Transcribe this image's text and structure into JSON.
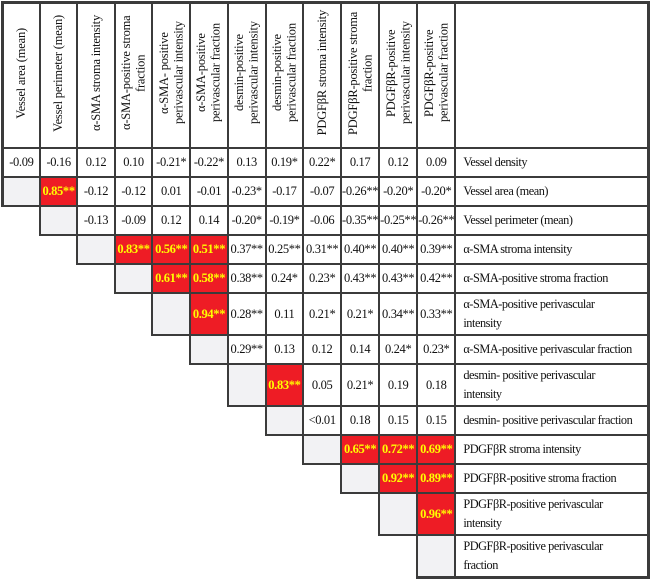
{
  "figure": {
    "kind": "correlation-matrix-table",
    "colors": {
      "highlight_bg": "#EE1C25",
      "highlight_text": "#FFFF00",
      "diagonal_bg": "#F2F2F4",
      "border": "#3B3B3B",
      "text": "#111111",
      "background": "#FFFFFF"
    }
  },
  "chart_data": {
    "type": "table",
    "columns": [
      "Vessel area (mean)",
      "Vessel perimeter (mean)",
      "α-SMA stroma intensity",
      "α-SMA-positive stroma fraction",
      "α-SMA- positive perivascular intensity",
      "α-SMA-positive perivascular fraction",
      "desmin-positive perivascular intensity",
      "desmin-positive perivascular fraction",
      "PDGFβR stroma intensity",
      "PDGFβR-positive stroma fraction",
      "PDGFβR-positive perivascular intensity",
      "PDGFβR-positive perivascular fraction"
    ],
    "rows": [
      {
        "label": "Vessel density",
        "tall": false,
        "cells": [
          {
            "v": "-0.09"
          },
          {
            "v": "-0.16"
          },
          {
            "v": "0.12"
          },
          {
            "v": "0.10"
          },
          {
            "v": "-0.21*"
          },
          {
            "v": "-0.22*"
          },
          {
            "v": "0.13"
          },
          {
            "v": "0.19*"
          },
          {
            "v": "0.22*"
          },
          {
            "v": "0.17"
          },
          {
            "v": "0.12"
          },
          {
            "v": "0.09"
          }
        ]
      },
      {
        "label": "Vessel area (mean)",
        "tall": false,
        "cells": [
          {
            "diag": true
          },
          {
            "v": "0.85**",
            "hl": true
          },
          {
            "v": "-0.12"
          },
          {
            "v": "-0.12"
          },
          {
            "v": "0.01"
          },
          {
            "v": "-0.01"
          },
          {
            "v": "-0.23*"
          },
          {
            "v": "-0.17"
          },
          {
            "v": "-0.07"
          },
          {
            "v": "-0.26**"
          },
          {
            "v": "-0.20*"
          },
          {
            "v": "-0.20*"
          }
        ]
      },
      {
        "label": "Vessel perimeter (mean)",
        "tall": false,
        "cells": [
          null,
          {
            "diag": true
          },
          {
            "v": "-0.13"
          },
          {
            "v": "-0.09"
          },
          {
            "v": "0.12"
          },
          {
            "v": "0.14"
          },
          {
            "v": "-0.20*"
          },
          {
            "v": "-0.19*"
          },
          {
            "v": "-0.06"
          },
          {
            "v": "-0.35**"
          },
          {
            "v": "-0.25**"
          },
          {
            "v": "-0.26**"
          }
        ]
      },
      {
        "label": "α-SMA stroma intensity",
        "tall": false,
        "cells": [
          null,
          null,
          {
            "diag": true
          },
          {
            "v": "0.83**",
            "hl": true
          },
          {
            "v": "0.56**",
            "hl": true
          },
          {
            "v": "0.51**",
            "hl": true
          },
          {
            "v": "0.37**"
          },
          {
            "v": "0.25**"
          },
          {
            "v": "0.31**"
          },
          {
            "v": "0.40**"
          },
          {
            "v": "0.40**"
          },
          {
            "v": "0.39**"
          }
        ]
      },
      {
        "label": "α-SMA-positive stroma fraction",
        "tall": false,
        "cells": [
          null,
          null,
          null,
          {
            "diag": true
          },
          {
            "v": "0.61**",
            "hl": true
          },
          {
            "v": "0.58**",
            "hl": true
          },
          {
            "v": "0.38**"
          },
          {
            "v": "0.24*"
          },
          {
            "v": "0.23*"
          },
          {
            "v": "0.43**"
          },
          {
            "v": "0.43**"
          },
          {
            "v": "0.42**"
          }
        ]
      },
      {
        "label": "α-SMA-positive perivascular intensity",
        "tall": true,
        "cells": [
          null,
          null,
          null,
          null,
          {
            "diag": true
          },
          {
            "v": "0.94**",
            "hl": true
          },
          {
            "v": "0.28**"
          },
          {
            "v": "0.11"
          },
          {
            "v": "0.21*"
          },
          {
            "v": "0.21*"
          },
          {
            "v": "0.34**"
          },
          {
            "v": "0.33**"
          }
        ]
      },
      {
        "label": "α-SMA-positive perivascular fraction",
        "tall": false,
        "cells": [
          null,
          null,
          null,
          null,
          null,
          {
            "diag": true
          },
          {
            "v": "0.29**"
          },
          {
            "v": "0.13"
          },
          {
            "v": "0.12"
          },
          {
            "v": "0.14"
          },
          {
            "v": "0.24*"
          },
          {
            "v": "0.23*"
          }
        ]
      },
      {
        "label": "desmin- positive perivascular intensity",
        "tall": true,
        "cells": [
          null,
          null,
          null,
          null,
          null,
          null,
          {
            "diag": true
          },
          {
            "v": "0.83**",
            "hl": true
          },
          {
            "v": "0.05"
          },
          {
            "v": "0.21*"
          },
          {
            "v": "0.19"
          },
          {
            "v": "0.18"
          }
        ]
      },
      {
        "label": "desmin- positive perivascular fraction",
        "tall": false,
        "cells": [
          null,
          null,
          null,
          null,
          null,
          null,
          null,
          {
            "diag": true
          },
          {
            "v": "<0.01"
          },
          {
            "v": "0.18"
          },
          {
            "v": "0.15"
          },
          {
            "v": "0.15"
          }
        ]
      },
      {
        "label": "PDGFβR stroma intensity",
        "tall": false,
        "cells": [
          null,
          null,
          null,
          null,
          null,
          null,
          null,
          null,
          {
            "diag": true
          },
          {
            "v": "0.65**",
            "hl": true
          },
          {
            "v": "0.72**",
            "hl": true
          },
          {
            "v": "0.69**",
            "hl": true
          }
        ]
      },
      {
        "label": "PDGFβR-positive stroma fraction",
        "tall": false,
        "cells": [
          null,
          null,
          null,
          null,
          null,
          null,
          null,
          null,
          null,
          {
            "diag": true
          },
          {
            "v": "0.92**",
            "hl": true
          },
          {
            "v": "0.89**",
            "hl": true
          }
        ]
      },
      {
        "label": "PDGFβR-positive perivascular intensity",
        "tall": true,
        "cells": [
          null,
          null,
          null,
          null,
          null,
          null,
          null,
          null,
          null,
          null,
          {
            "diag": true
          },
          {
            "v": "0.96**",
            "hl": true
          }
        ]
      },
      {
        "label": "PDGFβR-positive perivascular fraction",
        "tall": true,
        "cells": [
          null,
          null,
          null,
          null,
          null,
          null,
          null,
          null,
          null,
          null,
          null,
          {
            "diag": true
          }
        ]
      }
    ]
  }
}
